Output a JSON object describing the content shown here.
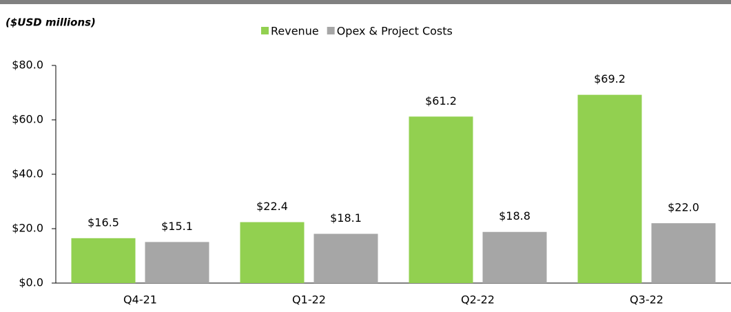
{
  "chart_data": {
    "type": "bar",
    "subtitle": "($USD millions)",
    "categories": [
      "Q4-21",
      "Q1-22",
      "Q2-22",
      "Q3-22"
    ],
    "series": [
      {
        "name": "Revenue",
        "color": "#92d050",
        "values": [
          16.5,
          22.4,
          61.2,
          69.2
        ],
        "value_labels": [
          "$16.5",
          "$22.4",
          "$61.2",
          "$69.2"
        ]
      },
      {
        "name": "Opex & Project Costs",
        "color": "#a6a6a6",
        "values": [
          15.1,
          18.1,
          18.8,
          22.0
        ],
        "value_labels": [
          "$15.1",
          "$18.1",
          "$18.8",
          "$22.0"
        ]
      }
    ],
    "ylim": [
      0,
      80
    ],
    "yticks": [
      {
        "value": 0,
        "label": "$0.0"
      },
      {
        "value": 20,
        "label": "$20.0"
      },
      {
        "value": 40,
        "label": "$40.0"
      },
      {
        "value": 60,
        "label": "$60.0"
      },
      {
        "value": 80,
        "label": "$80.0"
      }
    ],
    "legend": "top"
  }
}
